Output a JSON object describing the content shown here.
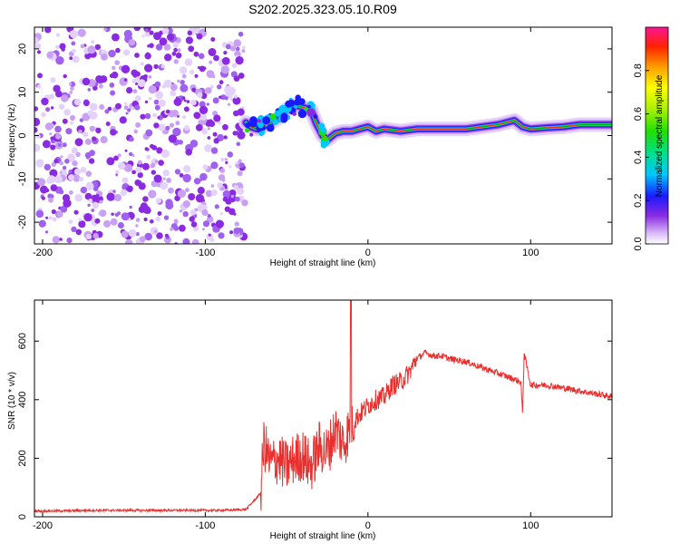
{
  "title": "S202.2025.323.05.10.R09",
  "chart_data": [
    {
      "type": "heatmap",
      "xlabel": "Height of straight line (km)",
      "ylabel": "Frequency (Hz)",
      "xlim": [
        -205,
        150
      ],
      "ylim": [
        -25,
        25
      ],
      "xticks": [
        -200,
        -100,
        0,
        100
      ],
      "yticks": [
        -20,
        -10,
        0,
        10,
        20
      ],
      "colorbar": {
        "label": "Normalized spectral amplitude",
        "range": [
          0,
          1
        ],
        "ticks": [
          "0.0",
          "0.2",
          "0.4",
          "0.6",
          "0.8"
        ]
      },
      "ridge": {
        "x": [
          -75,
          -72,
          -68,
          -65,
          -60,
          -55,
          -50,
          -45,
          -40,
          -35,
          -32,
          -28,
          -25,
          -20,
          -15,
          -10,
          -5,
          0,
          5,
          10,
          20,
          30,
          40,
          50,
          60,
          70,
          80,
          85,
          90,
          95,
          100,
          110,
          120,
          130,
          140,
          150
        ],
        "y": [
          3,
          2,
          1.5,
          2,
          3,
          4,
          6,
          7,
          6.5,
          6,
          3,
          0,
          -1,
          0.5,
          1,
          1,
          1.5,
          2,
          1,
          1.5,
          1,
          1.5,
          1.5,
          1.5,
          1.5,
          2,
          2.5,
          3,
          3.5,
          2,
          1.5,
          1.8,
          2,
          2.5,
          2.5,
          2.5
        ]
      }
    },
    {
      "type": "line",
      "xlabel": "Height of straight line (km)",
      "ylabel": "SNR (10 * v/v)",
      "xlim": [
        -205,
        150
      ],
      "ylim": [
        0,
        740
      ],
      "xticks": [
        -200,
        -100,
        0,
        100
      ],
      "yticks": [
        0,
        200,
        400,
        600
      ],
      "color": "#e8312f",
      "x": [
        -205,
        -190,
        -170,
        -150,
        -130,
        -110,
        -90,
        -75,
        -66,
        -64,
        -60,
        -55,
        -50,
        -45,
        -40,
        -35,
        -30,
        -25,
        -20,
        -15,
        -10,
        -5,
        0,
        5,
        10,
        15,
        20,
        25,
        30,
        35,
        40,
        45,
        50,
        60,
        70,
        80,
        90,
        94,
        95,
        96,
        100,
        110,
        120,
        130,
        140,
        150
      ],
      "y": [
        20,
        20,
        22,
        22,
        22,
        22,
        22,
        25,
        80,
        250,
        180,
        200,
        170,
        200,
        210,
        170,
        240,
        220,
        300,
        250,
        320,
        350,
        380,
        400,
        410,
        450,
        460,
        490,
        540,
        560,
        550,
        550,
        540,
        530,
        510,
        490,
        470,
        460,
        350,
        560,
        450,
        450,
        440,
        430,
        420,
        410
      ]
    }
  ]
}
